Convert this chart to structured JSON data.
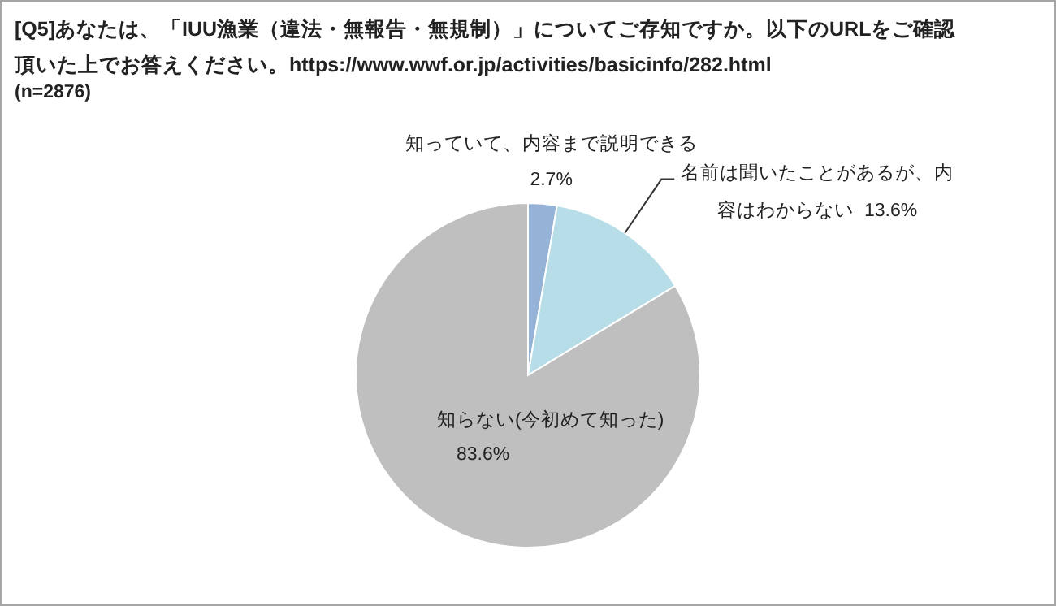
{
  "chart_data": {
    "type": "pie",
    "title": "[Q5]あなたは、「IUU漁業（違法・無報告・無規制）」についてご存知ですか。以下のURLをご確認頂いた上でお答えください。https://www.wwf.or.jp/activities/basicinfo/282.html",
    "subtitle": "(n=2876)",
    "categories": [
      "知っていて、内容まで説明できる",
      "名前は聞いたことがあるが、内容はわからない",
      "知らない(今初めて知った)"
    ],
    "values": [
      2.7,
      13.6,
      83.6
    ],
    "colors": [
      "#95b3d7",
      "#b7dee8",
      "#bfbfbf"
    ],
    "value_labels": [
      "2.7%",
      "13.6%",
      "83.6%"
    ]
  }
}
